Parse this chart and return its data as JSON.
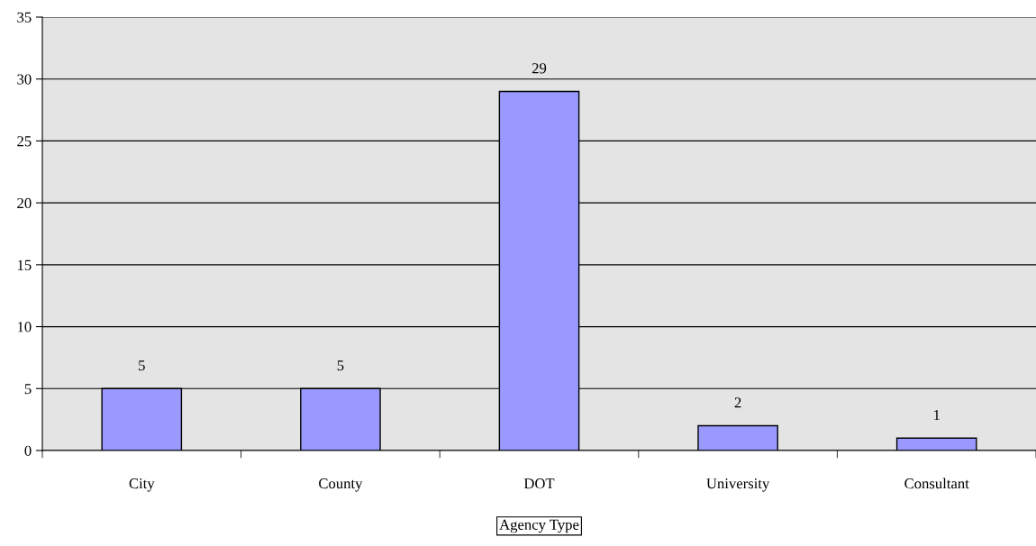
{
  "chart_data": {
    "type": "bar",
    "xlabel": "Agency Type",
    "categories": [
      "City",
      "County",
      "DOT",
      "University",
      "Consultant"
    ],
    "values": [
      5,
      5,
      29,
      2,
      1
    ],
    "color": "#9999ff",
    "ylim": [
      0,
      35
    ],
    "yticks": [
      0,
      5,
      10,
      15,
      20,
      25,
      30,
      35
    ],
    "grid": "y",
    "data_labels": true
  }
}
